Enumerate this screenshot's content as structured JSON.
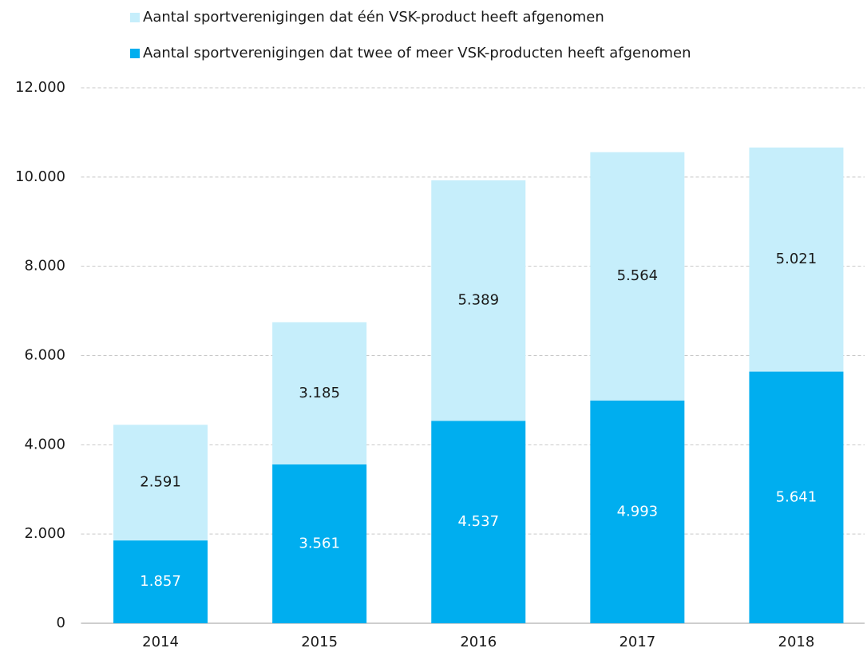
{
  "chart_data": {
    "type": "stacked_bar",
    "categories": [
      "2014",
      "2015",
      "2016",
      "2017",
      "2018"
    ],
    "series": [
      {
        "name": "Aantal sportverenigingen dat twee of meer VSK-producten heeft afgenomen",
        "color": "#00aeef",
        "values": [
          1857,
          3561,
          4537,
          4993,
          5641
        ],
        "value_labels": [
          "1.857",
          "3.561",
          "4.537",
          "4.993",
          "5.641"
        ]
      },
      {
        "name": "Aantal sportverenigingen dat één VSK-product heeft afgenomen",
        "color": "#c6eefb",
        "values": [
          2591,
          3185,
          5389,
          5564,
          5021
        ],
        "value_labels": [
          "2.591",
          "3.185",
          "5.389",
          "5.564",
          "5.021"
        ]
      }
    ],
    "ylim": [
      0,
      12000
    ],
    "yticks": [
      0,
      {
        "value": 2000,
        "label": "2.000"
      },
      {
        "value": 4000,
        "label": "4.000"
      },
      {
        "value": 6000,
        "label": "6.000"
      },
      {
        "value": 8000,
        "label": "8.000"
      },
      {
        "value": 10000,
        "label": "10.000"
      },
      {
        "value": 12000,
        "label": "12.000"
      }
    ],
    "grid": true
  }
}
